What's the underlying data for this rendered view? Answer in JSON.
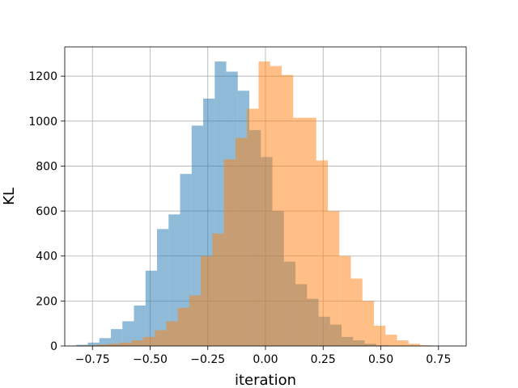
{
  "chart_data": {
    "type": "histogram",
    "title": "",
    "xlabel": "iteration",
    "ylabel": "KL",
    "xlim": [
      -0.87,
      0.87
    ],
    "ylim": [
      0,
      1330
    ],
    "grid": true,
    "xticks": [
      -0.75,
      -0.5,
      -0.25,
      0.0,
      0.25,
      0.5,
      0.75
    ],
    "xtick_labels": [
      "−0.75",
      "−0.50",
      "−0.25",
      "0.00",
      "0.25",
      "0.50",
      "0.75"
    ],
    "yticks": [
      0,
      200,
      400,
      600,
      800,
      1000,
      1200
    ],
    "ytick_labels": [
      "0",
      "200",
      "400",
      "600",
      "800",
      "1000",
      "1200"
    ],
    "series": [
      {
        "color": "#1f77b4",
        "opacity": 0.5,
        "bins": [
          {
            "x0": -0.82,
            "x1": -0.77,
            "count": 5
          },
          {
            "x0": -0.77,
            "x1": -0.72,
            "count": 15
          },
          {
            "x0": -0.72,
            "x1": -0.67,
            "count": 35
          },
          {
            "x0": -0.67,
            "x1": -0.62,
            "count": 75
          },
          {
            "x0": -0.62,
            "x1": -0.57,
            "count": 110
          },
          {
            "x0": -0.57,
            "x1": -0.52,
            "count": 180
          },
          {
            "x0": -0.52,
            "x1": -0.47,
            "count": 335
          },
          {
            "x0": -0.47,
            "x1": -0.42,
            "count": 520
          },
          {
            "x0": -0.42,
            "x1": -0.37,
            "count": 585
          },
          {
            "x0": -0.37,
            "x1": -0.32,
            "count": 765
          },
          {
            "x0": -0.32,
            "x1": -0.27,
            "count": 980
          },
          {
            "x0": -0.27,
            "x1": -0.22,
            "count": 1100
          },
          {
            "x0": -0.22,
            "x1": -0.17,
            "count": 1265
          },
          {
            "x0": -0.17,
            "x1": -0.12,
            "count": 1220
          },
          {
            "x0": -0.12,
            "x1": -0.07,
            "count": 1135
          },
          {
            "x0": -0.07,
            "x1": -0.02,
            "count": 960
          },
          {
            "x0": -0.02,
            "x1": 0.03,
            "count": 840
          },
          {
            "x0": 0.03,
            "x1": 0.08,
            "count": 600
          },
          {
            "x0": 0.08,
            "x1": 0.13,
            "count": 375
          },
          {
            "x0": 0.13,
            "x1": 0.18,
            "count": 275
          },
          {
            "x0": 0.18,
            "x1": 0.23,
            "count": 210
          },
          {
            "x0": 0.23,
            "x1": 0.28,
            "count": 130
          },
          {
            "x0": 0.28,
            "x1": 0.33,
            "count": 95
          },
          {
            "x0": 0.33,
            "x1": 0.38,
            "count": 40
          },
          {
            "x0": 0.38,
            "x1": 0.43,
            "count": 25
          },
          {
            "x0": 0.43,
            "x1": 0.48,
            "count": 10
          },
          {
            "x0": 0.48,
            "x1": 0.53,
            "count": 3
          }
        ]
      },
      {
        "color": "#ff7f0e",
        "opacity": 0.5,
        "bins": [
          {
            "x0": -0.78,
            "x1": -0.73,
            "count": 3
          },
          {
            "x0": -0.73,
            "x1": -0.68,
            "count": 6
          },
          {
            "x0": -0.68,
            "x1": -0.63,
            "count": 10
          },
          {
            "x0": -0.63,
            "x1": -0.58,
            "count": 15
          },
          {
            "x0": -0.58,
            "x1": -0.53,
            "count": 25
          },
          {
            "x0": -0.53,
            "x1": -0.48,
            "count": 40
          },
          {
            "x0": -0.48,
            "x1": -0.43,
            "count": 70
          },
          {
            "x0": -0.43,
            "x1": -0.38,
            "count": 110
          },
          {
            "x0": -0.38,
            "x1": -0.33,
            "count": 170
          },
          {
            "x0": -0.33,
            "x1": -0.28,
            "count": 225
          },
          {
            "x0": -0.28,
            "x1": -0.23,
            "count": 400
          },
          {
            "x0": -0.23,
            "x1": -0.18,
            "count": 500
          },
          {
            "x0": -0.18,
            "x1": -0.13,
            "count": 830
          },
          {
            "x0": -0.13,
            "x1": -0.08,
            "count": 925
          },
          {
            "x0": -0.08,
            "x1": -0.03,
            "count": 1055
          },
          {
            "x0": -0.03,
            "x1": 0.02,
            "count": 1265
          },
          {
            "x0": 0.02,
            "x1": 0.07,
            "count": 1245
          },
          {
            "x0": 0.07,
            "x1": 0.12,
            "count": 1205
          },
          {
            "x0": 0.12,
            "x1": 0.17,
            "count": 1015
          },
          {
            "x0": 0.17,
            "x1": 0.22,
            "count": 1015
          },
          {
            "x0": 0.22,
            "x1": 0.27,
            "count": 825
          },
          {
            "x0": 0.27,
            "x1": 0.32,
            "count": 600
          },
          {
            "x0": 0.32,
            "x1": 0.37,
            "count": 400
          },
          {
            "x0": 0.37,
            "x1": 0.42,
            "count": 300
          },
          {
            "x0": 0.42,
            "x1": 0.47,
            "count": 200
          },
          {
            "x0": 0.47,
            "x1": 0.52,
            "count": 90
          },
          {
            "x0": 0.52,
            "x1": 0.57,
            "count": 50
          },
          {
            "x0": 0.57,
            "x1": 0.62,
            "count": 25
          },
          {
            "x0": 0.62,
            "x1": 0.67,
            "count": 10
          },
          {
            "x0": 0.67,
            "x1": 0.72,
            "count": 3
          }
        ]
      }
    ]
  }
}
